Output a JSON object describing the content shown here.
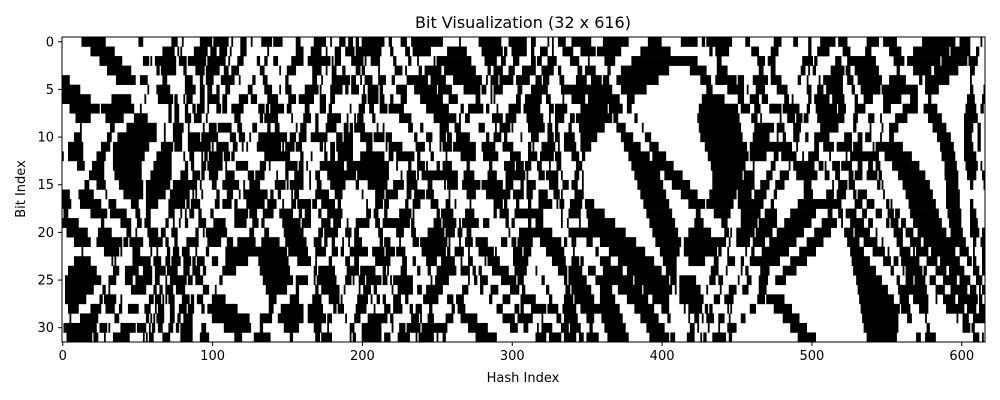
{
  "chart_data": {
    "type": "heatmap",
    "title": "Bit Visualization (32 x 616)",
    "xlabel": "Hash Index",
    "ylabel": "Bit Index",
    "rows": 32,
    "cols": 616,
    "xlim": [
      -0.5,
      615.5
    ],
    "ylim": [
      31.5,
      -0.5
    ],
    "x_ticks": [
      0,
      100,
      200,
      300,
      400,
      500,
      600
    ],
    "x_tick_labels": [
      "0",
      "100",
      "200",
      "300",
      "400",
      "500",
      "600"
    ],
    "y_ticks": [
      0,
      5,
      10,
      15,
      20,
      25,
      30
    ],
    "y_tick_labels": [
      "0",
      "5",
      "10",
      "15",
      "20",
      "25",
      "30"
    ],
    "colormap": {
      "0": "#000000",
      "1": "#ffffff"
    },
    "grid": false
  }
}
